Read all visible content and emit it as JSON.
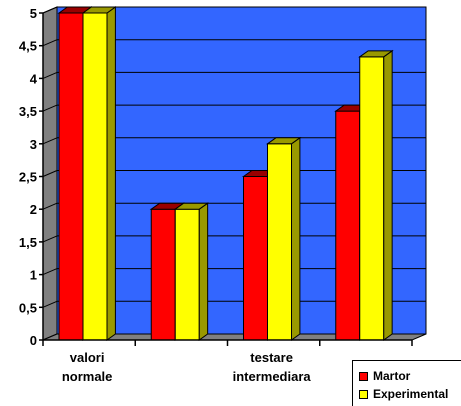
{
  "chart_data": {
    "type": "bar",
    "bar_style": "3d-clustered",
    "categories": [
      "valori normale",
      "",
      "testare intermediara",
      ""
    ],
    "category_labels": [
      {
        "lines": [
          "valori",
          "normale"
        ]
      },
      {
        "lines": []
      },
      {
        "lines": [
          "testare",
          "intermediara"
        ]
      },
      {
        "lines": []
      }
    ],
    "series": [
      {
        "name": "Martor",
        "values": [
          5,
          2,
          2.5,
          3.5
        ],
        "color": "#ff0000",
        "top_color": "#990000"
      },
      {
        "name": "Experimental",
        "values": [
          5,
          2,
          3,
          4.33
        ],
        "color": "#ffff00",
        "top_color": "#999900"
      }
    ],
    "y_ticks": [
      "0",
      "0,5",
      "1",
      "1,5",
      "2",
      "2,5",
      "3",
      "3,5",
      "4",
      "4,5",
      "5"
    ],
    "ylim": [
      0,
      5
    ],
    "grid": true,
    "plot_background": "#3366ff",
    "floor_color": "#808080",
    "legend_position": "bottom-right",
    "title": "",
    "xlabel": "",
    "ylabel": ""
  }
}
